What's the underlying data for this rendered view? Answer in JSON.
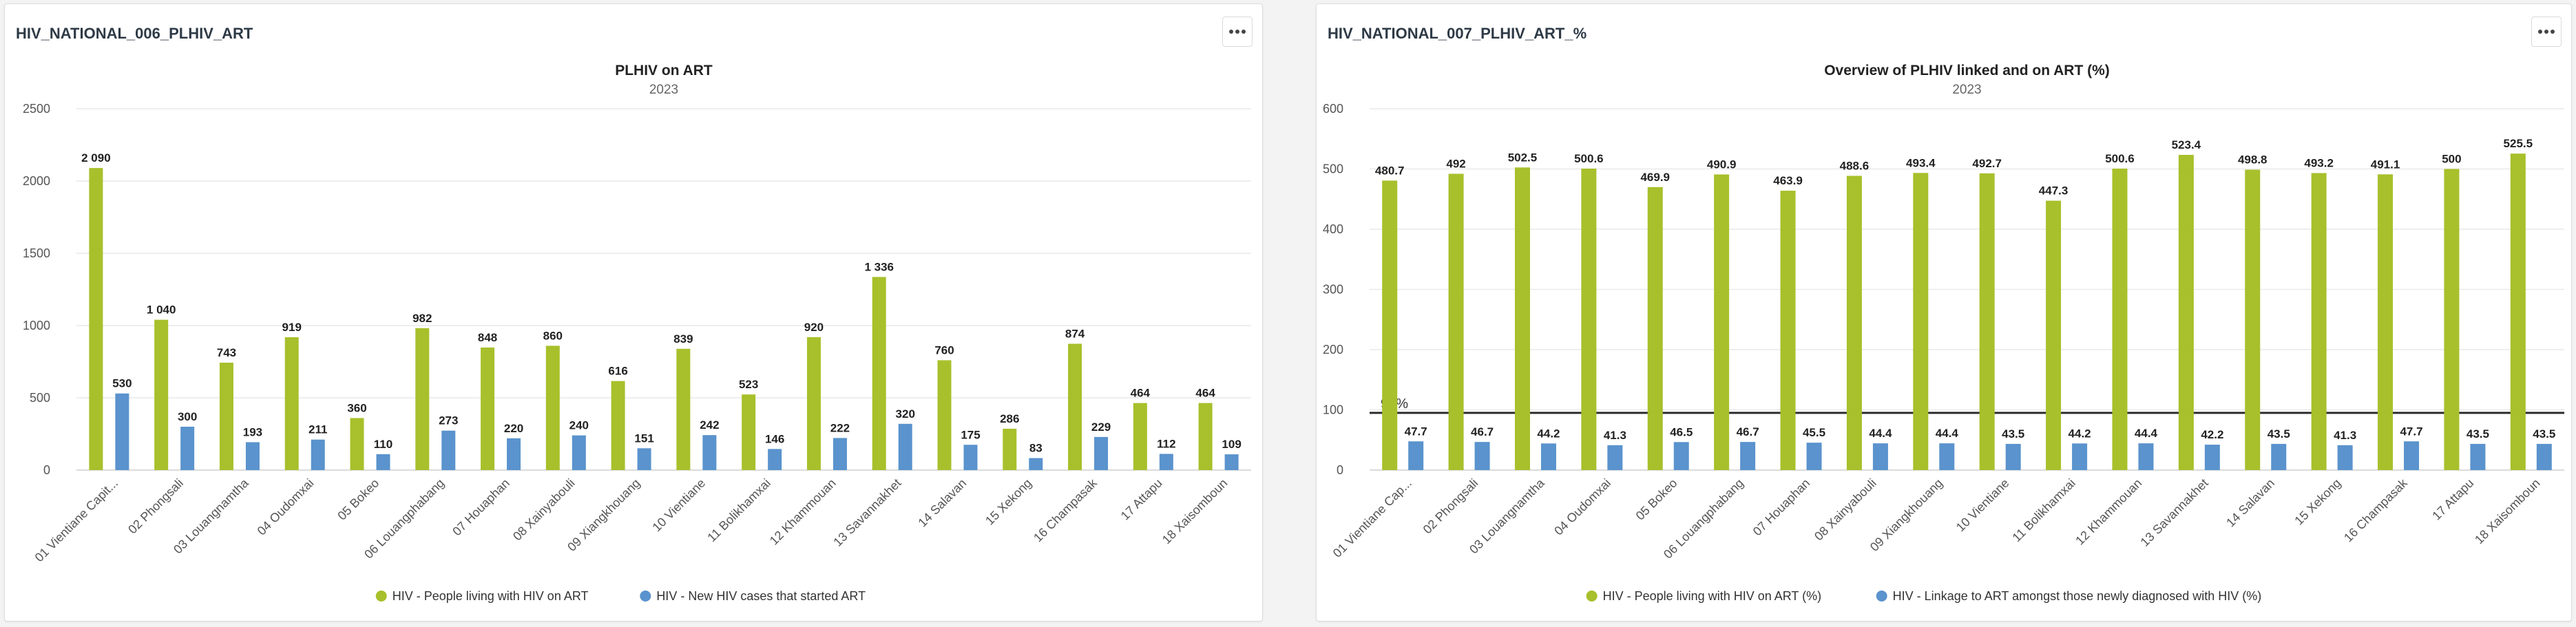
{
  "panels": [
    {
      "title": "HIV_NATIONAL_006_PLHIV_ART",
      "menu_icon": "more-horizontal-icon"
    },
    {
      "title": "HIV_NATIONAL_007_PLHIV_ART_%",
      "menu_icon": "more-horizontal-icon"
    }
  ],
  "colors": {
    "green": "#a7c02b",
    "blue": "#5a93cd",
    "grid": "#e9e9e9",
    "text": "#222222",
    "axis_text": "#555555",
    "target_line": "#2b2b2b"
  },
  "chart_data": [
    {
      "type": "bar",
      "title": "PLHIV on ART",
      "subtitle": "2023",
      "xlabel": "",
      "ylabel": "",
      "ylim": [
        0,
        2500
      ],
      "yticks": [
        0,
        500,
        1000,
        1500,
        2000,
        2500
      ],
      "grid": true,
      "legend_position": "bottom",
      "categories": [
        "01 Vientiane Capit...",
        "02 Phongsali",
        "03 Louangnamtha",
        "04 Oudomxai",
        "05 Bokeo",
        "06 Louangphabang",
        "07 Houaphan",
        "08 Xainyabouli",
        "09 Xiangkhouang",
        "10 Vientiane",
        "11 Bolikhamxai",
        "12 Khammouan",
        "13 Savannakhet",
        "14 Salavan",
        "15 Xekong",
        "16 Champasak",
        "17 Attapu",
        "18 Xaisomboun"
      ],
      "series": [
        {
          "name": "HIV - People living with HIV on ART",
          "color": "#a7c02b",
          "values": [
            2090,
            1040,
            743,
            919,
            360,
            982,
            848,
            860,
            616,
            839,
            523,
            920,
            1336,
            760,
            286,
            874,
            464,
            464
          ],
          "labels": [
            "2 090",
            "1 040",
            "743",
            "919",
            "360",
            "982",
            "848",
            "860",
            "616",
            "839",
            "523",
            "920",
            "1 336",
            "760",
            "286",
            "874",
            "464",
            "464"
          ]
        },
        {
          "name": "HIV - New HIV cases that started ART",
          "color": "#5a93cd",
          "values": [
            530,
            300,
            193,
            211,
            110,
            273,
            220,
            240,
            151,
            242,
            146,
            222,
            320,
            175,
            83,
            229,
            112,
            109
          ],
          "labels": [
            "530",
            "300",
            "193",
            "211",
            "110",
            "273",
            "220",
            "240",
            "151",
            "242",
            "146",
            "222",
            "320",
            "175",
            "83",
            "229",
            "112",
            "109"
          ]
        }
      ]
    },
    {
      "type": "bar",
      "title": "Overview of PLHIV linked and on ART (%)",
      "subtitle": "2023",
      "xlabel": "",
      "ylabel": "",
      "ylim": [
        0,
        600
      ],
      "yticks": [
        0,
        100,
        200,
        300,
        400,
        500,
        600
      ],
      "grid": true,
      "legend_position": "bottom",
      "target_line": {
        "value": 95,
        "label": "95%"
      },
      "categories": [
        "01 Vientiane Cap...",
        "02 Phongsali",
        "03 Louangnamtha",
        "04 Oudomxai",
        "05 Bokeo",
        "06 Louangphabang",
        "07 Houaphan",
        "08 Xainyabouli",
        "09 Xiangkhouang",
        "10 Vientiane",
        "11 Bolikhamxai",
        "12 Khammouan",
        "13 Savannakhet",
        "14 Salavan",
        "15 Xekong",
        "16 Champasak",
        "17 Attapu",
        "18 Xaisomboun"
      ],
      "series": [
        {
          "name": "HIV - People living with HIV on ART (%)",
          "color": "#a7c02b",
          "values": [
            480.7,
            492,
            502.5,
            500.6,
            469.9,
            490.9,
            463.9,
            488.6,
            493.4,
            492.7,
            447.3,
            500.6,
            523.4,
            498.8,
            493.2,
            491.1,
            500,
            525.5
          ],
          "labels": [
            "480.7",
            "492",
            "502.5",
            "500.6",
            "469.9",
            "490.9",
            "463.9",
            "488.6",
            "493.4",
            "492.7",
            "447.3",
            "500.6",
            "523.4",
            "498.8",
            "493.2",
            "491.1",
            "500",
            "525.5"
          ]
        },
        {
          "name": "HIV - Linkage to ART amongst those newly diagnosed with HIV (%)",
          "color": "#5a93cd",
          "values": [
            47.7,
            46.7,
            44.2,
            41.3,
            46.5,
            46.7,
            45.5,
            44.4,
            44.4,
            43.5,
            44.2,
            44.4,
            42.2,
            43.5,
            41.3,
            47.7,
            43.5,
            43.5
          ],
          "labels": [
            "47.7",
            "46.7",
            "44.2",
            "41.3",
            "46.5",
            "46.7",
            "45.5",
            "44.4",
            "44.4",
            "43.5",
            "44.2",
            "44.4",
            "42.2",
            "43.5",
            "41.3",
            "47.7",
            "43.5",
            "43.5"
          ]
        }
      ]
    }
  ]
}
